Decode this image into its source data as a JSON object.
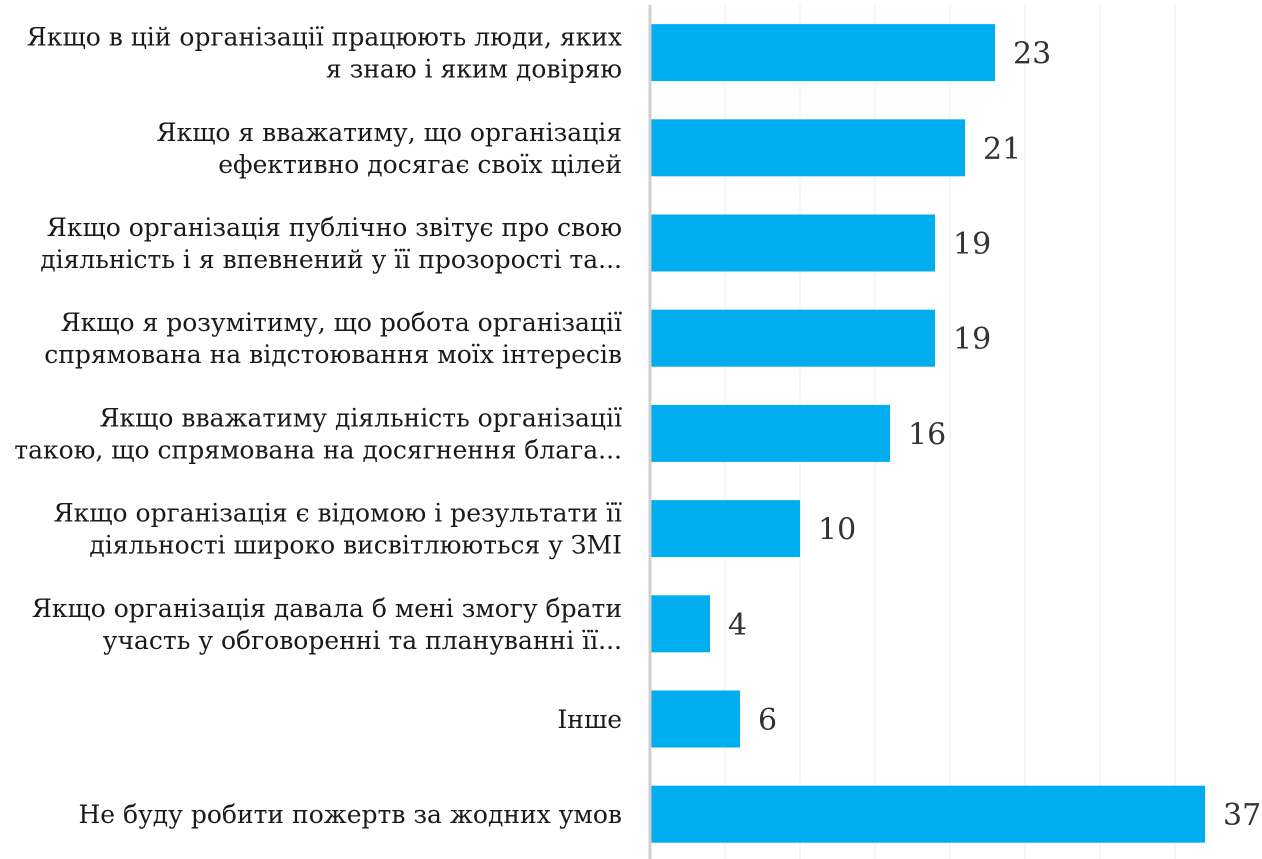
{
  "chart_data": {
    "type": "bar",
    "orientation": "horizontal",
    "title": "",
    "xlabel": "",
    "ylabel": "",
    "categories": [
      [
        "Якщо в цій організації працюють люди, яких",
        "я знаю і яким довіряю"
      ],
      [
        "Якщо я вважатиму, що організація",
        "ефективно досягає своїх цілей"
      ],
      [
        "Якщо організація публічно звітує про свою",
        "діяльність і я впевнений у її прозорості та..."
      ],
      [
        "Якщо я розумітиму, що робота організації",
        "спрямована на відстоювання моїх інтересів"
      ],
      [
        "Якщо вважатиму діяльність організації",
        "такою, що спрямована на досягнення блага..."
      ],
      [
        "Якщо організація є відомою і результати її",
        "діяльності широко висвітлюються у ЗМІ"
      ],
      [
        "Якщо організація давала б мені змогу брати",
        "участь у обговоренні та плануванні її..."
      ],
      [
        "Інше"
      ],
      [
        "Не буду робити пожертв за жодних умов"
      ]
    ],
    "values": [
      23,
      21,
      19,
      19,
      16,
      10,
      4,
      6,
      37
    ],
    "xlim": [
      0,
      38
    ],
    "grid": true,
    "legend": "none",
    "colors": {
      "bar": "#00AEEF",
      "axis": "#cfcfcf",
      "grid": "#ececec",
      "text": "#1a1a1a",
      "value_text": "#333333"
    }
  }
}
